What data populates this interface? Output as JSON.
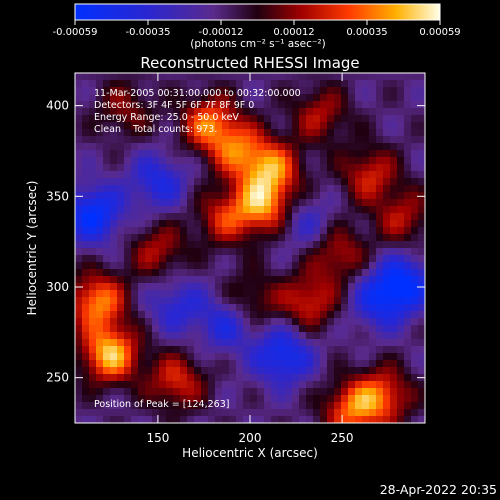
{
  "colorbar": {
    "ticks": [
      "-0.00059",
      "-0.00035",
      "-0.00012",
      "0.00012",
      "0.00035",
      "0.00059"
    ],
    "unit_label": "(photons cm⁻² s⁻¹ asec⁻²)"
  },
  "chart_data": {
    "type": "heatmap",
    "title": "Reconstructed RHESSI Image",
    "xlabel": "Heliocentric X (arcsec)",
    "ylabel": "Heliocentric Y (arcsec)",
    "xlim": [
      105,
      295
    ],
    "ylim": [
      225,
      418
    ],
    "x_ticks": [
      "150",
      "200",
      "250"
    ],
    "y_ticks": [
      "250",
      "300",
      "350",
      "400"
    ],
    "value_range": [
      -0.00059,
      0.00059
    ],
    "annotations": [
      "11-Mar-2005 00:31:00.000 to 00:32:00.000",
      "Detectors: 3F 4F 5F 6F 7F 8F 9F 0",
      "Energy Range: 25.0 - 50.0 keV",
      "Clean    Total counts: 973."
    ],
    "peak_label": "Position of Peak = [124,263]",
    "peak_position": [
      124,
      263
    ],
    "bright_regions": [
      {
        "x": 178,
        "y": 390,
        "value": 0.00045
      },
      {
        "x": 194,
        "y": 375,
        "value": 0.00038
      },
      {
        "x": 207,
        "y": 345,
        "value": 0.0005
      },
      {
        "x": 212,
        "y": 365,
        "value": 0.00045
      },
      {
        "x": 124,
        "y": 263,
        "value": 0.00059
      },
      {
        "x": 117,
        "y": 292,
        "value": 0.0005
      },
      {
        "x": 186,
        "y": 338,
        "value": 0.00032
      },
      {
        "x": 160,
        "y": 248,
        "value": 0.00035
      },
      {
        "x": 255,
        "y": 232,
        "value": 0.00042
      },
      {
        "x": 272,
        "y": 240,
        "value": 0.0004
      },
      {
        "x": 232,
        "y": 292,
        "value": 0.00035
      },
      {
        "x": 248,
        "y": 318,
        "value": 0.0003
      },
      {
        "x": 265,
        "y": 362,
        "value": 0.00033
      },
      {
        "x": 283,
        "y": 338,
        "value": 0.00028
      },
      {
        "x": 150,
        "y": 320,
        "value": 0.00028
      },
      {
        "x": 200,
        "y": 292,
        "value": 0.00025
      },
      {
        "x": 238,
        "y": 395,
        "value": 0.00028
      },
      {
        "x": 132,
        "y": 398,
        "value": 0.00022
      }
    ],
    "dim_regions": [
      {
        "x": 115,
        "y": 340,
        "value": -0.00045
      },
      {
        "x": 218,
        "y": 262,
        "value": -0.0004
      },
      {
        "x": 283,
        "y": 302,
        "value": -0.00042
      },
      {
        "x": 270,
        "y": 292,
        "value": -0.0003
      },
      {
        "x": 188,
        "y": 280,
        "value": -0.0003
      },
      {
        "x": 160,
        "y": 290,
        "value": -0.00025
      },
      {
        "x": 150,
        "y": 358,
        "value": -0.0003
      },
      {
        "x": 230,
        "y": 335,
        "value": -0.0002
      }
    ]
  },
  "timestamp": "28-Apr-2022 20:35"
}
